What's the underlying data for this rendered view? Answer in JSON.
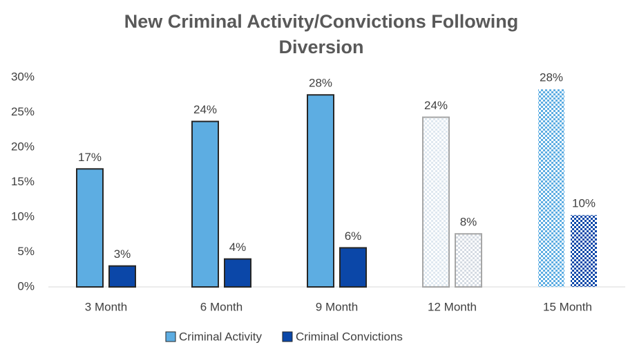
{
  "chart_data": {
    "type": "bar",
    "title": [
      "New Criminal Activity/Convictions Following",
      "Diversion"
    ],
    "categories": [
      "3 Month",
      "6 Month",
      "9 Month",
      "12 Month",
      "15 Month"
    ],
    "series": [
      {
        "name": "Criminal Activity",
        "color": "#5dade2",
        "values": [
          16.9,
          23.7,
          27.5,
          24.3,
          28.3
        ],
        "value_labels": [
          "17%",
          "24%",
          "28%",
          "24%",
          "28%"
        ]
      },
      {
        "name": "Criminal Convictions",
        "color": "#0b47a8",
        "values": [
          3,
          4,
          5.6,
          7.6,
          10.3
        ],
        "value_labels": [
          "3%",
          "4%",
          "6%",
          "8%",
          "10%"
        ]
      }
    ],
    "styles": [
      "solid",
      "solid",
      "solid",
      "light-pattern",
      "checker-pattern"
    ],
    "ylim": [
      0,
      30
    ],
    "yticks": [
      {
        "value": 0,
        "label": "0%"
      },
      {
        "value": 5,
        "label": "5%"
      },
      {
        "value": 10,
        "label": "10%"
      },
      {
        "value": 15,
        "label": "15%"
      },
      {
        "value": 20,
        "label": "20%"
      },
      {
        "value": 25,
        "label": "25%"
      },
      {
        "value": 30,
        "label": "30%"
      }
    ],
    "grid": false,
    "legend": "bottom"
  }
}
